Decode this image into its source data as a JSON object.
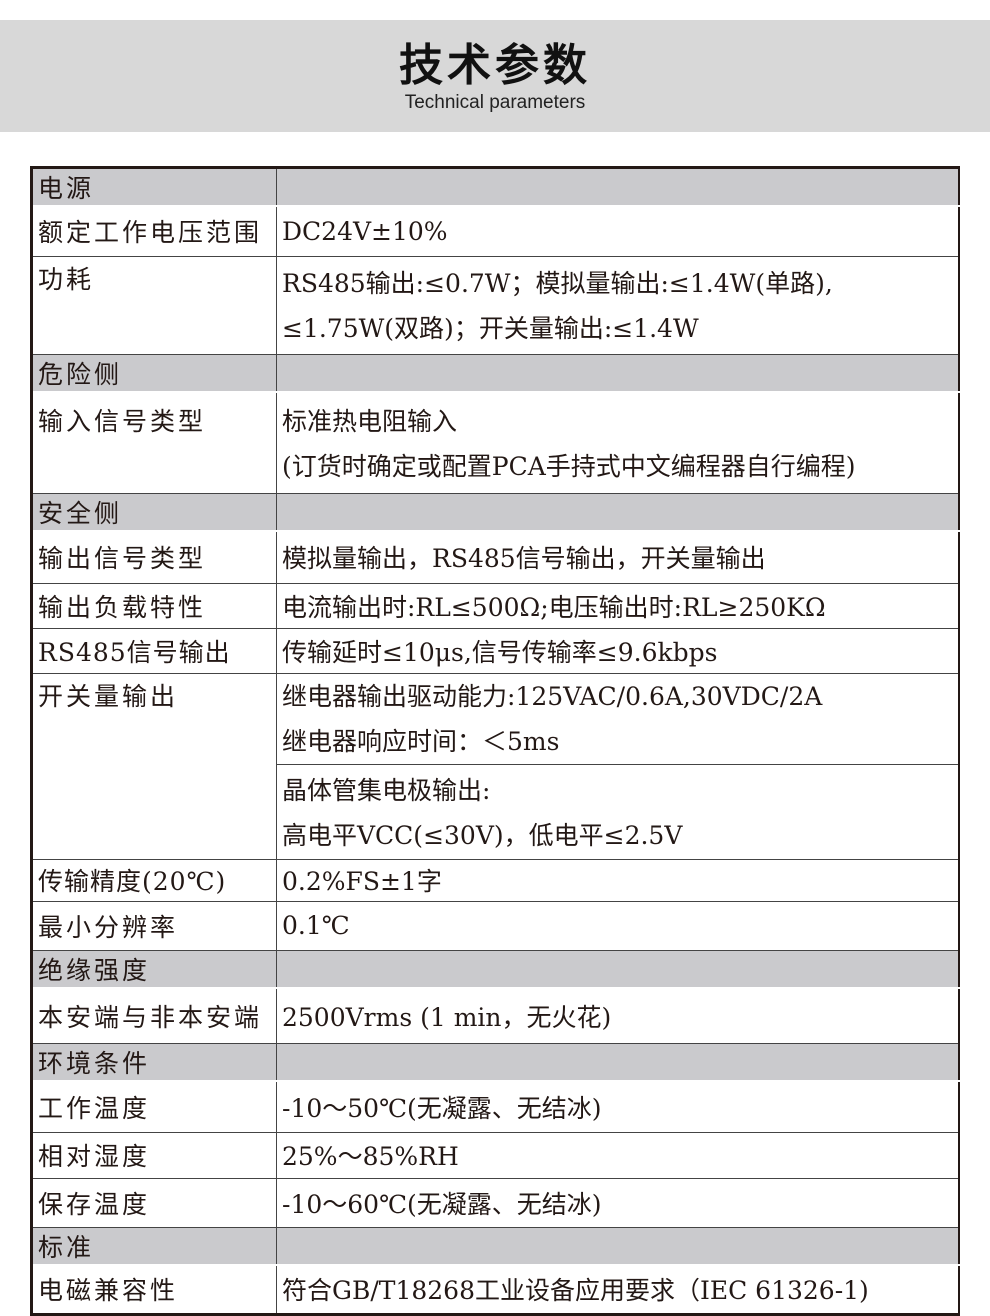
{
  "header": {
    "title": "技术参数",
    "subtitle": "Technical parameters"
  },
  "rows": [
    {
      "label": "电源",
      "section": true
    },
    {
      "label": "额定工作电压范围",
      "lines": [
        "DC24V±10%"
      ]
    },
    {
      "label": "功耗",
      "lines": [
        "RS485输出:≤0.7W；模拟量输出:≤1.4W(单路),",
        "≤1.75W(双路)；开关量输出:≤1.4W"
      ]
    },
    {
      "label": "危险侧",
      "section": true
    },
    {
      "label": "输入信号类型",
      "lines": [
        "标准热电阻输入",
        "(订货时确定或配置PCA手持式中文编程器自行编程)"
      ]
    },
    {
      "label": "安全侧",
      "section": true
    },
    {
      "label": "输出信号类型",
      "lines": [
        "模拟量输出，RS485信号输出，开关量输出"
      ]
    },
    {
      "label": "输出负载特性",
      "lines": [
        "电流输出时:RL≤500Ω;电压输出时:RL≥250KΩ"
      ]
    },
    {
      "label": "RS485信号输出",
      "lines": [
        "传输延时≤10μs,信号传输率≤9.6kbps"
      ]
    },
    {
      "label": "开关量输出",
      "lines": [
        "继电器输出驱动能力:125VAC/0.6A,30VDC/2A",
        "继电器响应时间：＜5ms",
        "晶体管集电极输出:",
        "高电平VCC(≤30V)，低电平≤2.5V"
      ]
    },
    {
      "label": "传输精度(20℃)",
      "lines": [
        "0.2%FS±1字"
      ]
    },
    {
      "label": "最小分辨率",
      "lines": [
        "0.1℃"
      ]
    },
    {
      "label": "绝缘强度",
      "section": true
    },
    {
      "label": "本安端与非本安端",
      "lines": [
        "2500Vrms (1 min，无火花)"
      ]
    },
    {
      "label": "环境条件",
      "section": true
    },
    {
      "label": "工作温度",
      "lines": [
        "-10～50℃(无凝露、无结冰)"
      ]
    },
    {
      "label": "相对湿度",
      "lines": [
        "25%～85%RH"
      ]
    },
    {
      "label": "保存温度",
      "lines": [
        "-10～60℃(无凝露、无结冰)"
      ]
    },
    {
      "label": "标准",
      "section": true
    },
    {
      "label": "电磁兼容性",
      "lines": [
        "符合GB/T18268工业设备应用要求（IEC 61326-1)"
      ]
    }
  ]
}
